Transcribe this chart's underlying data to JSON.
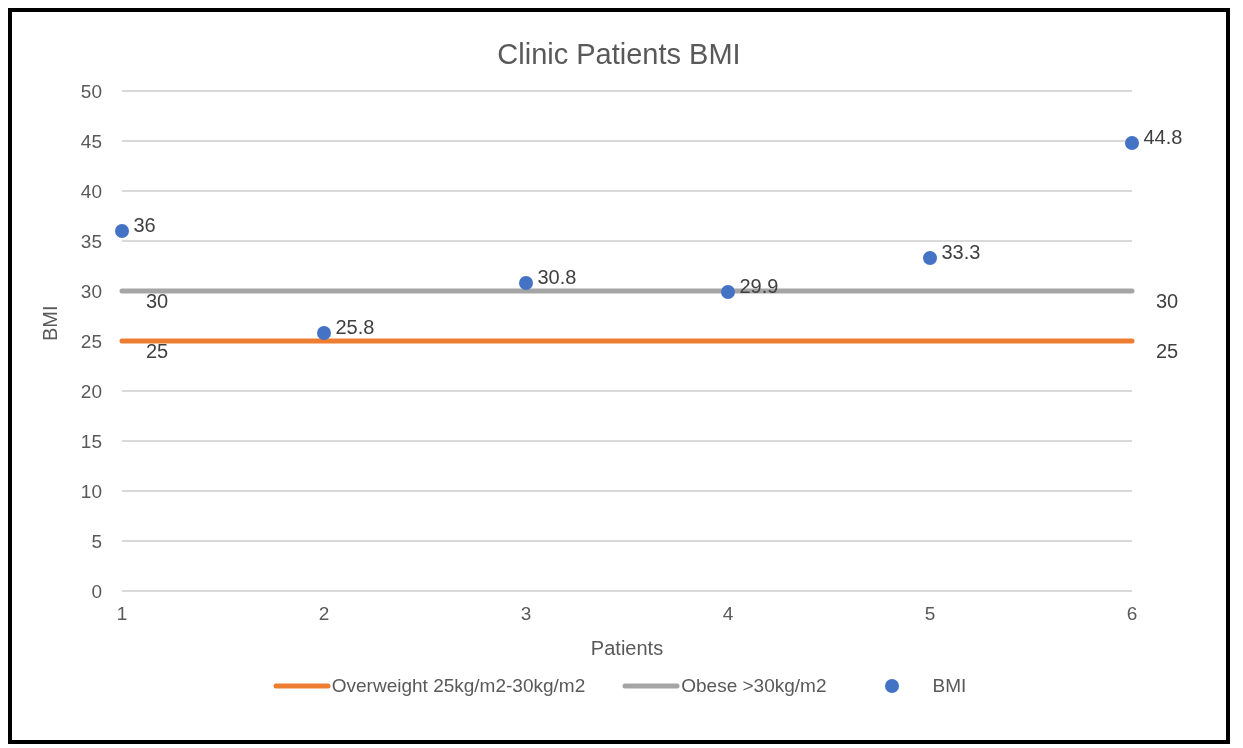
{
  "chart_data": {
    "type": "line",
    "title": "Clinic Patients BMI",
    "xlabel": "Patients",
    "ylabel": "BMI",
    "categories": [
      "1",
      "2",
      "3",
      "4",
      "5",
      "6"
    ],
    "series": [
      {
        "name": "Overweight 25kg/m2-30kg/m2",
        "color": "#ed7d31",
        "values": [
          25,
          25,
          25,
          25,
          25,
          25
        ],
        "value_labels": [
          "25",
          null,
          null,
          null,
          null,
          "25"
        ]
      },
      {
        "name": "Obese >30kg/m2",
        "color": "#a5a5a5",
        "values": [
          30,
          30,
          30,
          30,
          30,
          30
        ],
        "value_labels": [
          "30",
          null,
          null,
          null,
          null,
          "30"
        ]
      },
      {
        "name": "BMI",
        "type": "scatter",
        "color": "#4472c4",
        "marker": "circle",
        "values": [
          36,
          25.8,
          30.8,
          29.9,
          33.3,
          44.8
        ],
        "value_labels": [
          "36",
          "25.8",
          "30.8",
          "29.9",
          "33.3",
          "44.8"
        ]
      }
    ],
    "ylim": [
      0,
      50
    ],
    "yticks": [
      0,
      5,
      10,
      15,
      20,
      25,
      30,
      35,
      40,
      45,
      50
    ],
    "grid": "y",
    "legend": "bottom"
  }
}
